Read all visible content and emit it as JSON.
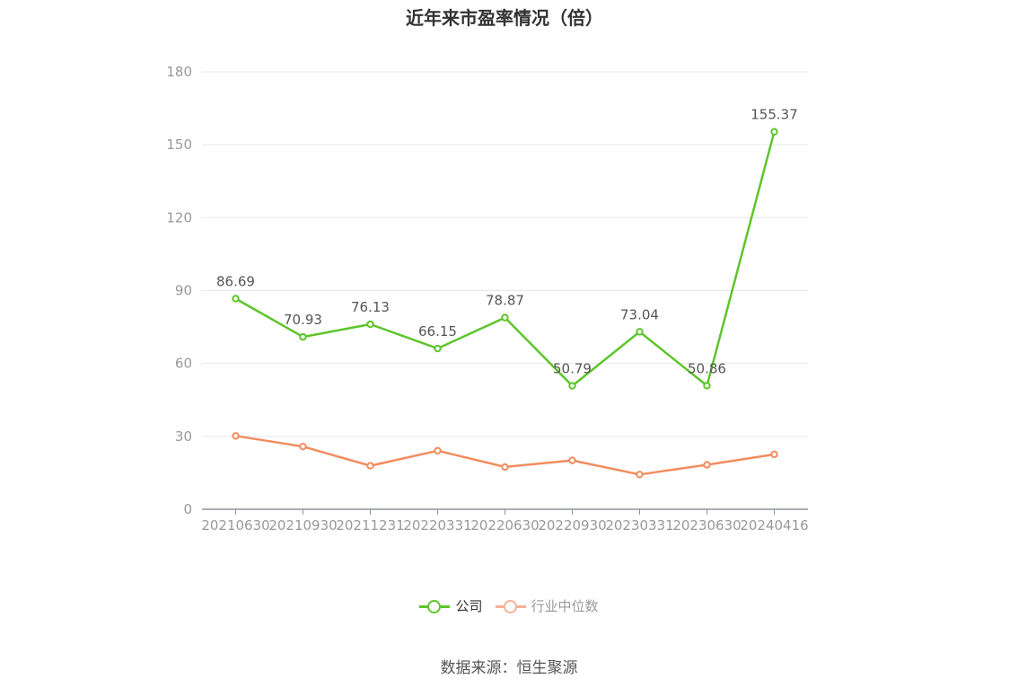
{
  "title": "近年来市盈率情况（倍）",
  "source": "数据来源：恒生聚源",
  "colors": {
    "company": "#5ec52b",
    "industry": "#f28c5e",
    "industry_legend": "#f5b199",
    "grid": "#e6e8ef",
    "axis": "#999999"
  },
  "chart_data": {
    "type": "line",
    "title": "近年来市盈率情况（倍）",
    "xlabel": "",
    "ylabel": "",
    "categories": [
      "20210630",
      "20210930",
      "20211231",
      "20220331",
      "20220630",
      "20220930",
      "20230331",
      "20230630",
      "20240416"
    ],
    "yticks": [
      0,
      30,
      60,
      90,
      120,
      150,
      180
    ],
    "ylim": [
      0,
      180
    ],
    "grid": true,
    "legend": "bottom",
    "series": [
      {
        "name": "公司",
        "values": [
          86.69,
          70.93,
          76.13,
          66.15,
          78.87,
          50.79,
          73.04,
          50.86,
          155.37
        ],
        "data_labels": [
          "86.69",
          "70.93",
          "76.13",
          "66.15",
          "78.87",
          "50.79",
          "73.04",
          "50.86",
          "155.37"
        ]
      },
      {
        "name": "行业中位数",
        "values": [
          30.2,
          25.8,
          17.9,
          24.1,
          17.4,
          20.1,
          14.3,
          18.3,
          22.6
        ]
      }
    ]
  }
}
